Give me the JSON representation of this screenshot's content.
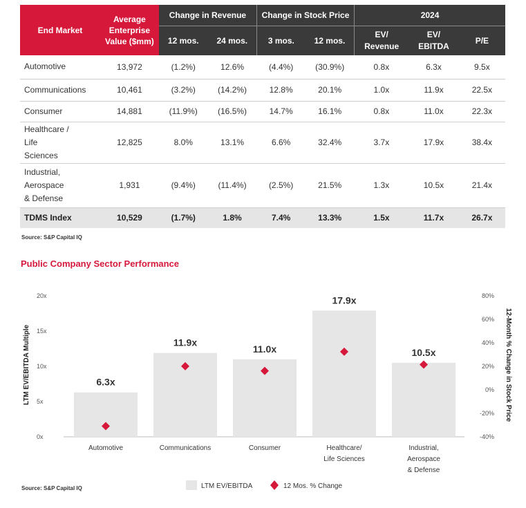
{
  "table": {
    "headers": {
      "end_market": "End Market",
      "avg_ev": "Average Enterprise Value ($mm)",
      "change_revenue": "Change in Revenue",
      "change_stock": "Change in Stock Price",
      "year": "2024",
      "rev_12": "12 mos.",
      "rev_24": "24 mos.",
      "stock_3": "3 mos.",
      "stock_12": "12 mos.",
      "ev_revenue": "EV/ Revenue",
      "ev_ebitda": "EV/ EBITDA",
      "pe": "P/E"
    },
    "rows": [
      {
        "market": "Automotive",
        "ev": "13,972",
        "rev12": "(1.2%)",
        "rev24": "12.6%",
        "st3": "(4.4%)",
        "st12": "(30.9%)",
        "evrev": "0.8x",
        "evebitda": "6.3x",
        "pe": "9.5x"
      },
      {
        "market": "Communications",
        "ev": "10,461",
        "rev12": "(3.2%)",
        "rev24": "(14.2%)",
        "st3": "12.8%",
        "st12": "20.1%",
        "evrev": "1.0x",
        "evebitda": "11.9x",
        "pe": "22.5x"
      },
      {
        "market": "Consumer",
        "ev": "14,881",
        "rev12": "(11.9%)",
        "rev24": "(16.5%)",
        "st3": "14.7%",
        "st12": "16.1%",
        "evrev": "0.8x",
        "evebitda": "11.0x",
        "pe": "22.3x"
      },
      {
        "market": "Healthcare / Life Sciences",
        "ev": "12,825",
        "rev12": "8.0%",
        "rev24": "13.1%",
        "st3": "6.6%",
        "st12": "32.4%",
        "evrev": "3.7x",
        "evebitda": "17.9x",
        "pe": "38.4x"
      },
      {
        "market": "Industrial, Aerospace & Defense",
        "ev": "1,931",
        "rev12": "(9.4%)",
        "rev24": "(11.4%)",
        "st3": "(2.5%)",
        "st12": "21.5%",
        "evrev": "1.3x",
        "evebitda": "10.5x",
        "pe": "21.4x"
      }
    ],
    "total": {
      "market": "TDMS Index",
      "ev": "10,529",
      "rev12": "(1.7%)",
      "rev24": "1.8%",
      "st3": "7.4%",
      "st12": "13.3%",
      "evrev": "1.5x",
      "evebitda": "11.7x",
      "pe": "26.7x"
    }
  },
  "source_top": "Source: S&P Capital IQ",
  "chart_title": "Public Company Sector Performance",
  "source_bottom": "Source: S&P Capital IQ",
  "colors": {
    "accent_red": "#d6183b",
    "bar_gray": "#e6e6e6",
    "header_dark": "#3a3a3a"
  },
  "chart_data": {
    "type": "bar",
    "title": "Public Company Sector Performance",
    "categories": [
      "Automotive",
      "Communications",
      "Consumer",
      "Healthcare/ Life Sciences",
      "Industrial, Aerospace & Defense"
    ],
    "series": [
      {
        "name": "LTM EV/EBITDA",
        "kind": "bar",
        "axis": "left",
        "values": [
          6.3,
          11.9,
          11.0,
          17.9,
          10.5
        ],
        "labels": [
          "6.3x",
          "11.9x",
          "11.0x",
          "17.9x",
          "10.5x"
        ]
      },
      {
        "name": "12 Mos. % Change",
        "kind": "marker",
        "axis": "right",
        "values": [
          -30.9,
          20.1,
          16.1,
          32.4,
          21.5
        ]
      }
    ],
    "ylabel": "LTM EV/EBITDA Multiple",
    "ylim": [
      0,
      20
    ],
    "yticks": [
      "0x",
      "5x",
      "10x",
      "15x",
      "20x"
    ],
    "y2label": "12-Month % Change in Stock Price",
    "y2lim": [
      -40,
      80
    ],
    "y2ticks": [
      "-40%",
      "-20%",
      "0%",
      "20%",
      "40%",
      "60%",
      "80%"
    ],
    "grid": false,
    "legend": "bottom-center"
  }
}
